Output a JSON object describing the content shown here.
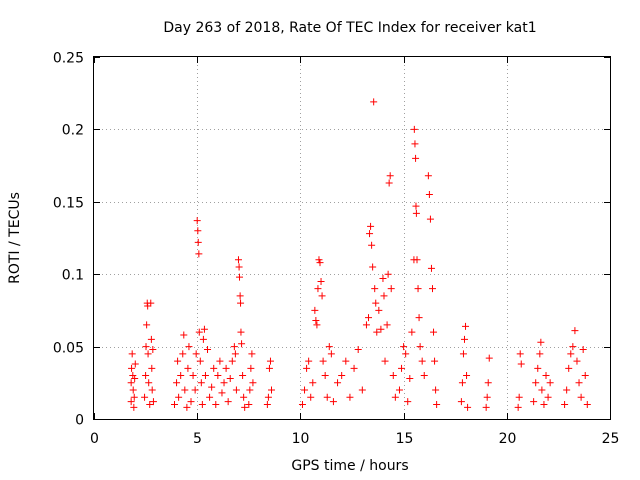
{
  "chart_data": {
    "type": "scatter",
    "title": "Day 263 of 2018, Rate Of TEC Index for receiver kat1",
    "xlabel": "GPS time / hours",
    "ylabel": "ROTI / TECUs",
    "xlim": [
      0,
      25
    ],
    "ylim": [
      0,
      0.25
    ],
    "xticks": [
      0,
      5,
      10,
      15,
      20,
      25
    ],
    "xtick_labels": [
      "0",
      "5",
      "10",
      "15",
      "20",
      "25"
    ],
    "yticks": [
      0,
      0.05,
      0.1,
      0.15,
      0.2,
      0.25
    ],
    "ytick_labels": [
      "0",
      "0.05",
      "0.1",
      "0.15",
      "0.2",
      "0.25"
    ],
    "grid": true,
    "marker": "plus",
    "series": [
      {
        "name": "ROTI",
        "color": "#ff0000",
        "points": [
          [
            1.8,
            0.012
          ],
          [
            1.8,
            0.025
          ],
          [
            1.82,
            0.035
          ],
          [
            1.85,
            0.045
          ],
          [
            1.88,
            0.03
          ],
          [
            1.9,
            0.02
          ],
          [
            1.93,
            0.008
          ],
          [
            1.95,
            0.015
          ],
          [
            1.97,
            0.028
          ],
          [
            2.0,
            0.038
          ],
          [
            2.45,
            0.015
          ],
          [
            2.5,
            0.03
          ],
          [
            2.52,
            0.05
          ],
          [
            2.55,
            0.065
          ],
          [
            2.58,
            0.08
          ],
          [
            2.6,
            0.078
          ],
          [
            2.62,
            0.045
          ],
          [
            2.65,
            0.025
          ],
          [
            2.7,
            0.01
          ],
          [
            2.75,
            0.08
          ],
          [
            2.78,
            0.055
          ],
          [
            2.8,
            0.035
          ],
          [
            2.82,
            0.02
          ],
          [
            2.85,
            0.048
          ],
          [
            2.88,
            0.012
          ],
          [
            3.9,
            0.01
          ],
          [
            4.0,
            0.025
          ],
          [
            4.05,
            0.04
          ],
          [
            4.1,
            0.015
          ],
          [
            4.2,
            0.03
          ],
          [
            4.3,
            0.045
          ],
          [
            4.35,
            0.058
          ],
          [
            4.4,
            0.02
          ],
          [
            4.5,
            0.008
          ],
          [
            4.55,
            0.035
          ],
          [
            4.6,
            0.05
          ],
          [
            4.7,
            0.012
          ],
          [
            4.8,
            0.03
          ],
          [
            4.9,
            0.02
          ],
          [
            4.95,
            0.045
          ],
          [
            5.0,
            0.137
          ],
          [
            5.03,
            0.13
          ],
          [
            5.05,
            0.122
          ],
          [
            5.08,
            0.114
          ],
          [
            5.1,
            0.06
          ],
          [
            5.15,
            0.04
          ],
          [
            5.2,
            0.025
          ],
          [
            5.25,
            0.01
          ],
          [
            5.3,
            0.055
          ],
          [
            5.35,
            0.062
          ],
          [
            5.4,
            0.03
          ],
          [
            5.5,
            0.048
          ],
          [
            5.6,
            0.015
          ],
          [
            5.7,
            0.022
          ],
          [
            5.8,
            0.035
          ],
          [
            5.9,
            0.01
          ],
          [
            6.0,
            0.03
          ],
          [
            6.1,
            0.04
          ],
          [
            6.2,
            0.018
          ],
          [
            6.3,
            0.025
          ],
          [
            6.4,
            0.035
          ],
          [
            6.5,
            0.012
          ],
          [
            6.6,
            0.028
          ],
          [
            6.7,
            0.04
          ],
          [
            6.8,
            0.05
          ],
          [
            6.85,
            0.045
          ],
          [
            6.9,
            0.02
          ],
          [
            7.0,
            0.11
          ],
          [
            7.03,
            0.105
          ],
          [
            7.05,
            0.098
          ],
          [
            7.08,
            0.085
          ],
          [
            7.1,
            0.08
          ],
          [
            7.12,
            0.06
          ],
          [
            7.15,
            0.052
          ],
          [
            7.2,
            0.03
          ],
          [
            7.25,
            0.015
          ],
          [
            7.3,
            0.008
          ],
          [
            7.5,
            0.01
          ],
          [
            7.55,
            0.02
          ],
          [
            7.6,
            0.035
          ],
          [
            7.65,
            0.045
          ],
          [
            7.7,
            0.025
          ],
          [
            8.4,
            0.01
          ],
          [
            8.45,
            0.015
          ],
          [
            8.5,
            0.035
          ],
          [
            8.55,
            0.04
          ],
          [
            8.6,
            0.02
          ],
          [
            10.1,
            0.01
          ],
          [
            10.2,
            0.02
          ],
          [
            10.3,
            0.035
          ],
          [
            10.4,
            0.04
          ],
          [
            10.5,
            0.015
          ],
          [
            10.6,
            0.025
          ],
          [
            10.7,
            0.075
          ],
          [
            10.75,
            0.068
          ],
          [
            10.8,
            0.065
          ],
          [
            10.85,
            0.09
          ],
          [
            10.9,
            0.11
          ],
          [
            10.95,
            0.108
          ],
          [
            11.0,
            0.095
          ],
          [
            11.05,
            0.085
          ],
          [
            11.1,
            0.04
          ],
          [
            11.2,
            0.03
          ],
          [
            11.3,
            0.015
          ],
          [
            11.4,
            0.05
          ],
          [
            11.5,
            0.045
          ],
          [
            11.6,
            0.012
          ],
          [
            11.8,
            0.025
          ],
          [
            12.0,
            0.03
          ],
          [
            12.2,
            0.04
          ],
          [
            12.4,
            0.015
          ],
          [
            12.6,
            0.035
          ],
          [
            12.8,
            0.048
          ],
          [
            13.0,
            0.02
          ],
          [
            13.2,
            0.065
          ],
          [
            13.3,
            0.07
          ],
          [
            13.35,
            0.128
          ],
          [
            13.4,
            0.133
          ],
          [
            13.45,
            0.12
          ],
          [
            13.5,
            0.105
          ],
          [
            13.55,
            0.219
          ],
          [
            13.6,
            0.09
          ],
          [
            13.65,
            0.08
          ],
          [
            13.7,
            0.06
          ],
          [
            13.8,
            0.075
          ],
          [
            13.9,
            0.062
          ],
          [
            14.0,
            0.097
          ],
          [
            14.05,
            0.085
          ],
          [
            14.1,
            0.04
          ],
          [
            14.2,
            0.065
          ],
          [
            14.25,
            0.1
          ],
          [
            14.3,
            0.163
          ],
          [
            14.35,
            0.168
          ],
          [
            14.4,
            0.09
          ],
          [
            14.5,
            0.03
          ],
          [
            14.6,
            0.015
          ],
          [
            14.8,
            0.02
          ],
          [
            14.9,
            0.035
          ],
          [
            15.0,
            0.05
          ],
          [
            15.1,
            0.045
          ],
          [
            15.2,
            0.012
          ],
          [
            15.3,
            0.028
          ],
          [
            15.4,
            0.06
          ],
          [
            15.5,
            0.11
          ],
          [
            15.52,
            0.2
          ],
          [
            15.55,
            0.19
          ],
          [
            15.58,
            0.18
          ],
          [
            15.6,
            0.147
          ],
          [
            15.62,
            0.142
          ],
          [
            15.65,
            0.11
          ],
          [
            15.7,
            0.09
          ],
          [
            15.75,
            0.07
          ],
          [
            15.8,
            0.05
          ],
          [
            15.9,
            0.04
          ],
          [
            16.0,
            0.03
          ],
          [
            16.2,
            0.168
          ],
          [
            16.25,
            0.155
          ],
          [
            16.3,
            0.138
          ],
          [
            16.35,
            0.104
          ],
          [
            16.4,
            0.09
          ],
          [
            16.45,
            0.06
          ],
          [
            16.5,
            0.04
          ],
          [
            16.55,
            0.02
          ],
          [
            16.6,
            0.01
          ],
          [
            17.8,
            0.012
          ],
          [
            17.85,
            0.025
          ],
          [
            17.9,
            0.045
          ],
          [
            17.95,
            0.055
          ],
          [
            18.0,
            0.064
          ],
          [
            18.05,
            0.03
          ],
          [
            18.1,
            0.008
          ],
          [
            19.0,
            0.008
          ],
          [
            19.05,
            0.015
          ],
          [
            19.1,
            0.025
          ],
          [
            19.15,
            0.042
          ],
          [
            20.55,
            0.008
          ],
          [
            20.6,
            0.015
          ],
          [
            20.65,
            0.045
          ],
          [
            20.7,
            0.038
          ],
          [
            21.3,
            0.012
          ],
          [
            21.4,
            0.025
          ],
          [
            21.5,
            0.035
          ],
          [
            21.6,
            0.045
          ],
          [
            21.65,
            0.053
          ],
          [
            21.7,
            0.02
          ],
          [
            21.8,
            0.01
          ],
          [
            21.9,
            0.03
          ],
          [
            22.0,
            0.015
          ],
          [
            22.1,
            0.025
          ],
          [
            22.8,
            0.01
          ],
          [
            22.9,
            0.02
          ],
          [
            23.0,
            0.035
          ],
          [
            23.1,
            0.045
          ],
          [
            23.2,
            0.05
          ],
          [
            23.3,
            0.061
          ],
          [
            23.4,
            0.04
          ],
          [
            23.5,
            0.025
          ],
          [
            23.6,
            0.015
          ],
          [
            23.7,
            0.048
          ],
          [
            23.8,
            0.03
          ],
          [
            23.9,
            0.01
          ]
        ]
      }
    ]
  }
}
